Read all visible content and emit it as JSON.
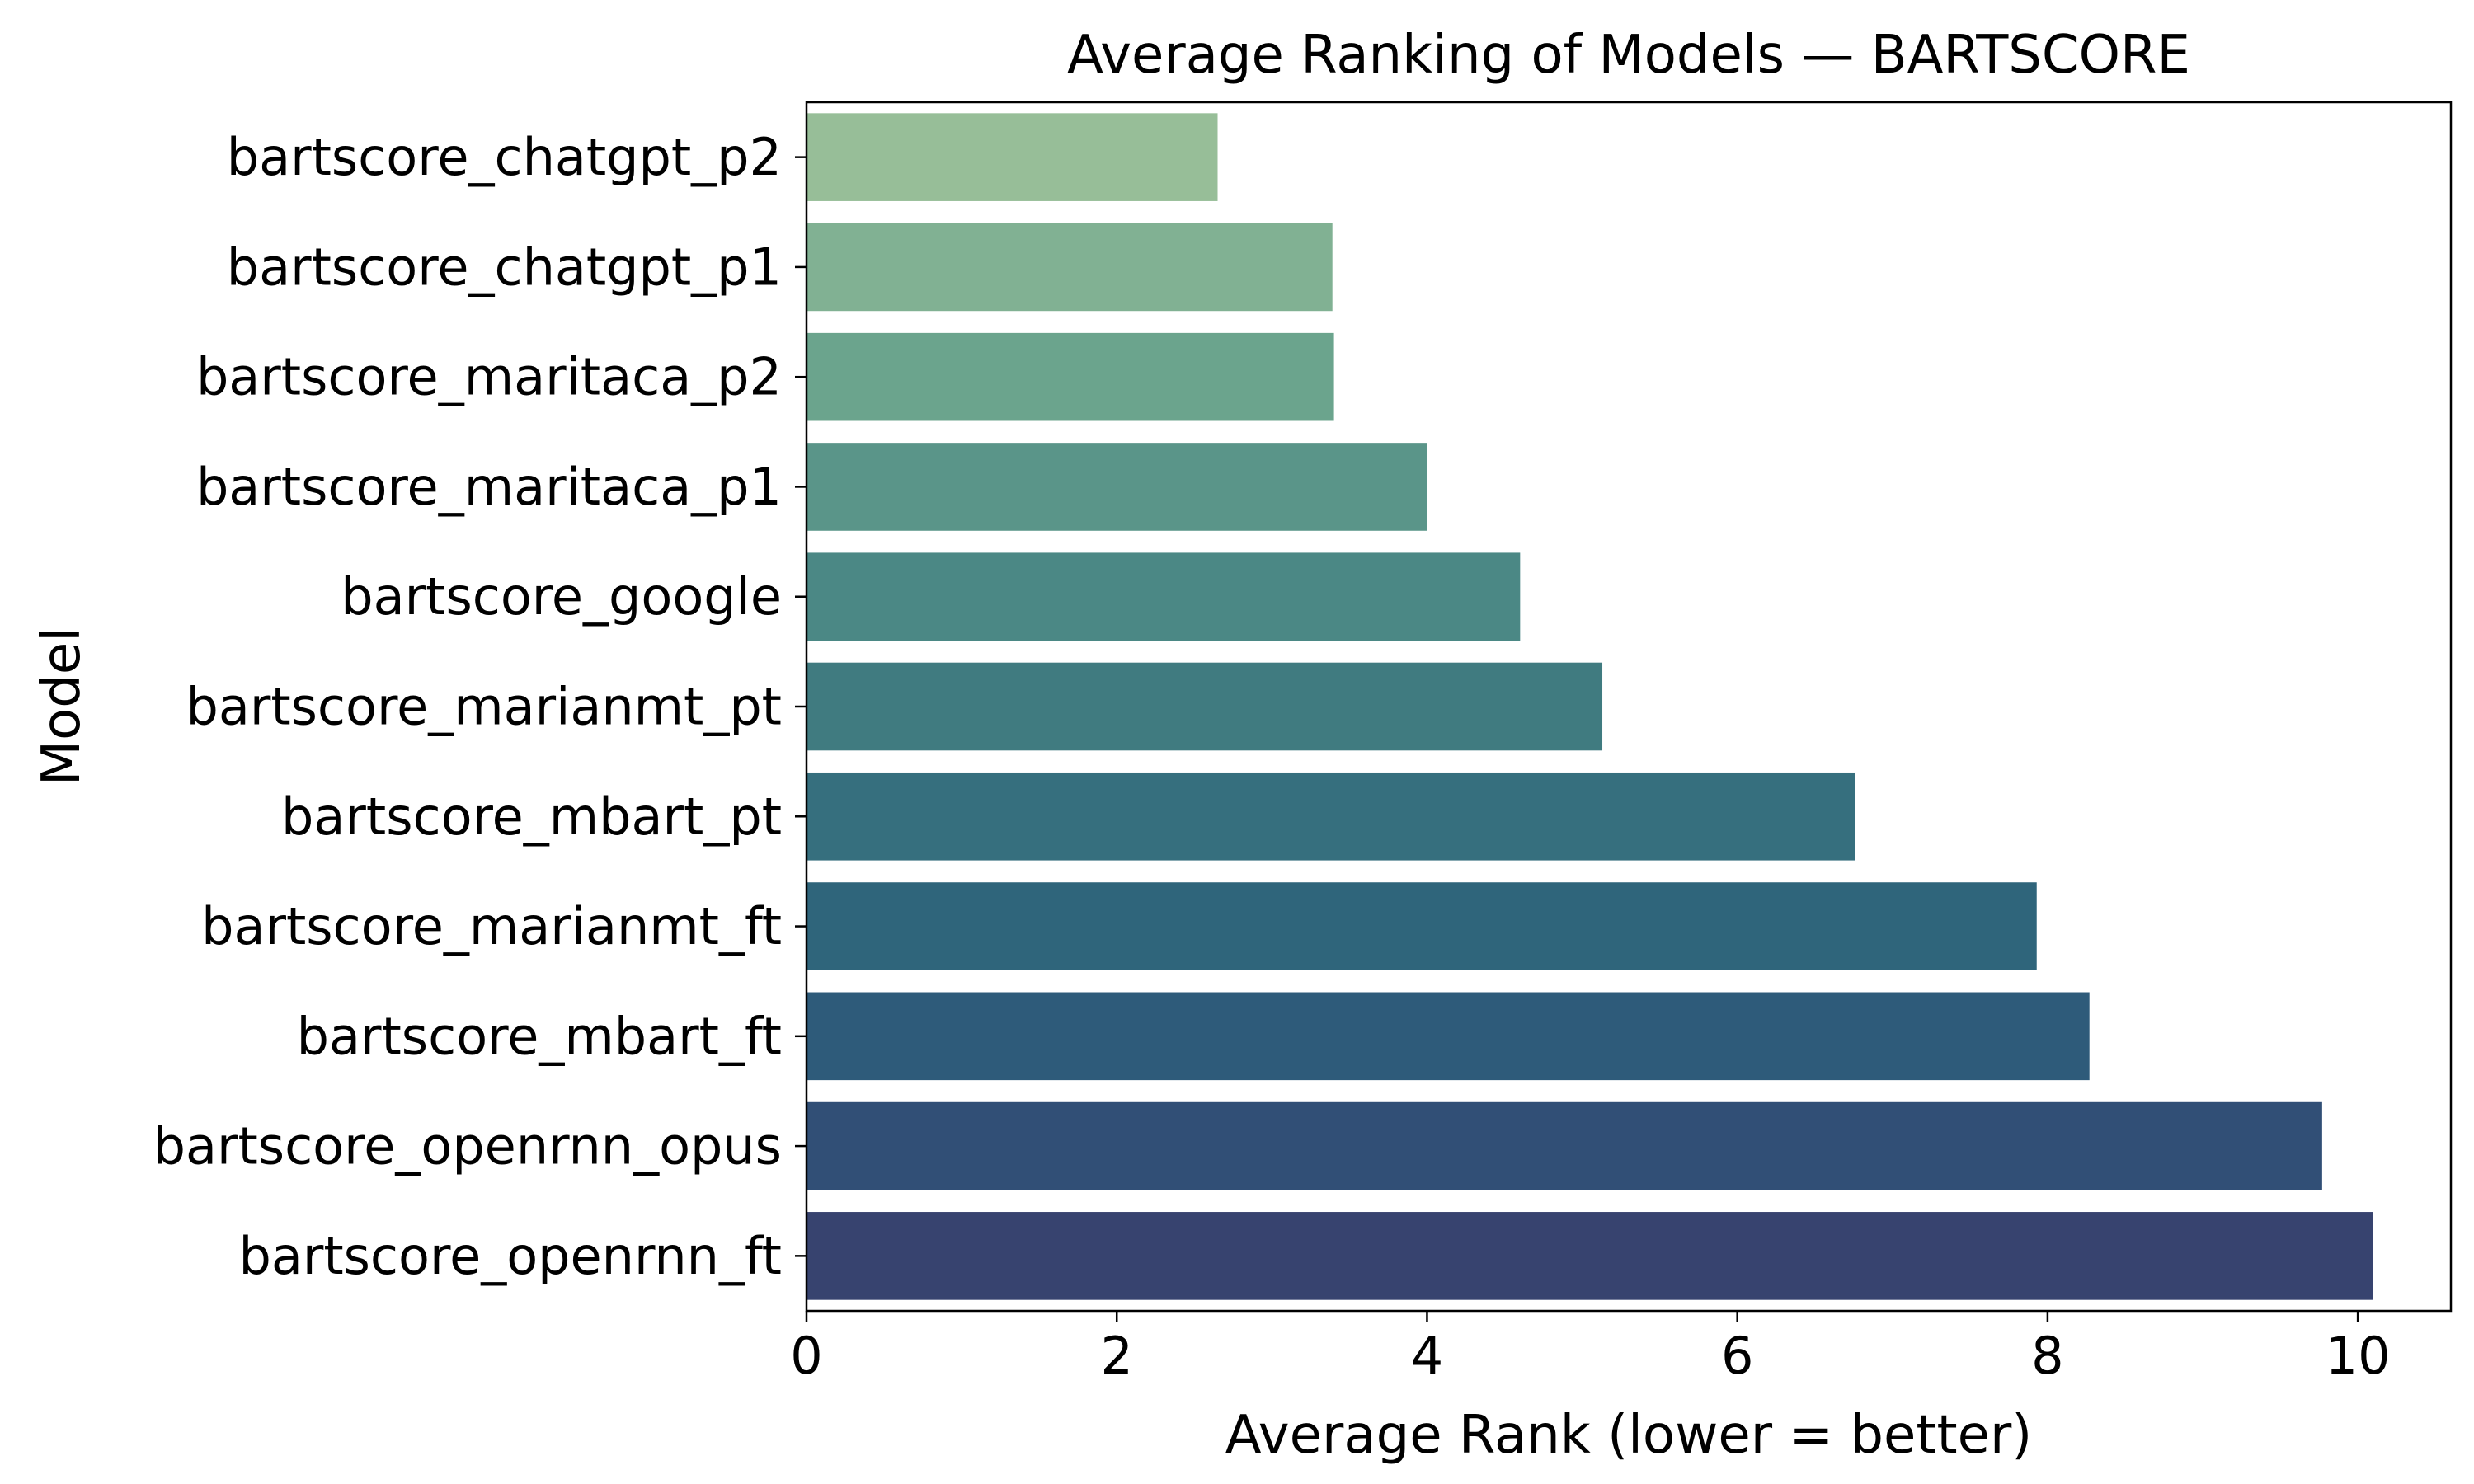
{
  "chart_data": {
    "type": "bar",
    "orientation": "horizontal",
    "title": "Average Ranking of Models — BARTSCORE",
    "xlabel": "Average Rank (lower = better)",
    "ylabel": "Model",
    "xlim": [
      0,
      10.6
    ],
    "xticks": [
      0,
      2,
      4,
      6,
      8,
      10
    ],
    "grid": false,
    "categories": [
      "bartscore_chatgpt_p2",
      "bartscore_chatgpt_p1",
      "bartscore_maritaca_p2",
      "bartscore_maritaca_p1",
      "bartscore_google",
      "bartscore_marianmt_pt",
      "bartscore_mbart_pt",
      "bartscore_marianmt_ft",
      "bartscore_mbart_ft",
      "bartscore_openrnn_opus",
      "bartscore_openrnn_ft"
    ],
    "values": [
      2.65,
      3.39,
      3.4,
      4.0,
      4.6,
      5.13,
      6.76,
      7.93,
      8.27,
      9.77,
      10.1
    ],
    "colors": [
      "#97be98",
      "#81b193",
      "#6ba48d",
      "#5a9589",
      "#4b8885",
      "#407b80",
      "#366f7e",
      "#2f657b",
      "#2e5b7a",
      "#314f76",
      "#37436f"
    ]
  }
}
